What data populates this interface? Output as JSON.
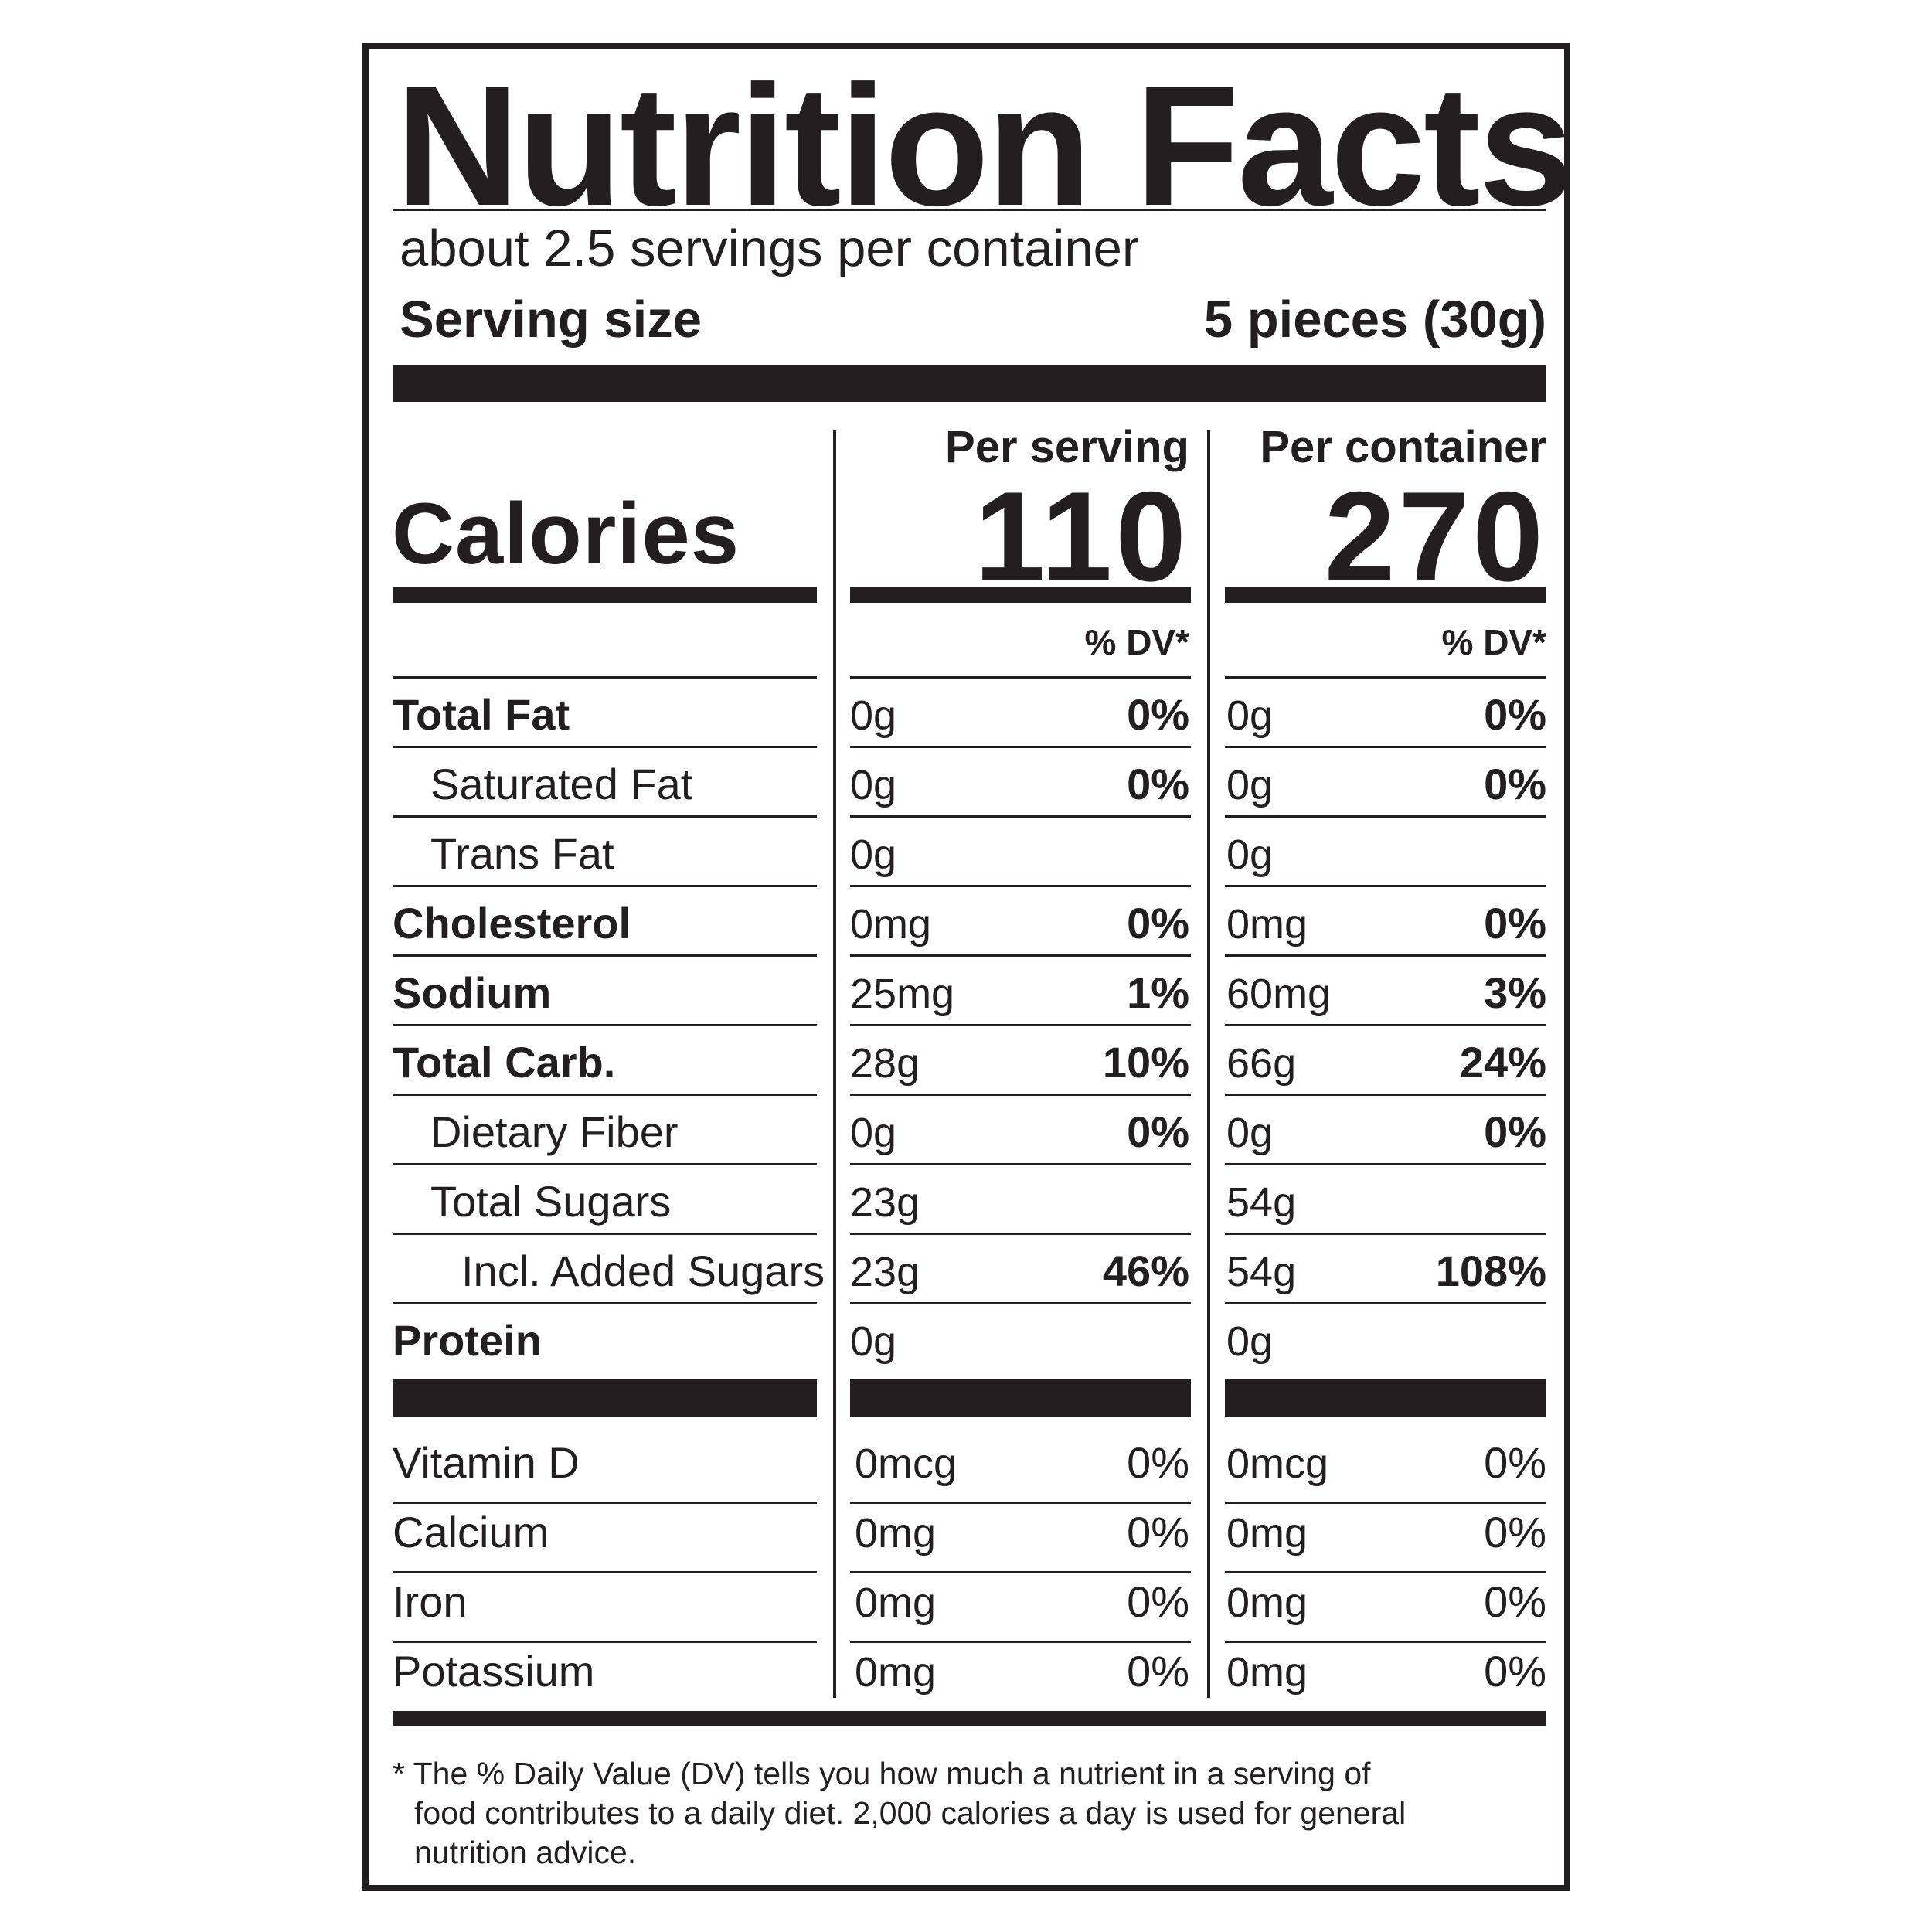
{
  "title": "Nutrition Facts",
  "servings_per_container": "about 2.5 servings per container",
  "serving_size": {
    "label": "Serving size",
    "value": "5 pieces (30g)"
  },
  "columns": {
    "per_serving": {
      "heading": "Per serving",
      "calories": "110",
      "dv_heading": "% DV*"
    },
    "per_container": {
      "heading": "Per container",
      "calories": "270",
      "dv_heading": "% DV*"
    }
  },
  "calories_label": "Calories",
  "nutrients": [
    {
      "label": "Total Fat",
      "bold": true,
      "indent": 0,
      "serving_amount": "0g",
      "serving_dv": "0%",
      "container_amount": "0g",
      "container_dv": "0%"
    },
    {
      "label": "Saturated Fat",
      "bold": false,
      "indent": 1,
      "serving_amount": "0g",
      "serving_dv": "0%",
      "container_amount": "0g",
      "container_dv": "0%"
    },
    {
      "label": "Trans Fat",
      "bold": false,
      "indent": 1,
      "serving_amount": "0g",
      "serving_dv": "",
      "container_amount": "0g",
      "container_dv": ""
    },
    {
      "label": "Cholesterol",
      "bold": true,
      "indent": 0,
      "serving_amount": "0mg",
      "serving_dv": "0%",
      "container_amount": "0mg",
      "container_dv": "0%"
    },
    {
      "label": "Sodium",
      "bold": true,
      "indent": 0,
      "serving_amount": "25mg",
      "serving_dv": "1%",
      "container_amount": "60mg",
      "container_dv": "3%"
    },
    {
      "label": "Total Carb.",
      "bold": true,
      "indent": 0,
      "serving_amount": "28g",
      "serving_dv": "10%",
      "container_amount": "66g",
      "container_dv": "24%"
    },
    {
      "label": "Dietary Fiber",
      "bold": false,
      "indent": 1,
      "serving_amount": "0g",
      "serving_dv": "0%",
      "container_amount": "0g",
      "container_dv": "0%"
    },
    {
      "label": "Total Sugars",
      "bold": false,
      "indent": 1,
      "serving_amount": "23g",
      "serving_dv": "",
      "container_amount": "54g",
      "container_dv": ""
    },
    {
      "label": "Incl. Added Sugars",
      "bold": false,
      "indent": 2,
      "serving_amount": "23g",
      "serving_dv": "46%",
      "container_amount": "54g",
      "container_dv": "108%"
    },
    {
      "label": "Protein",
      "bold": true,
      "indent": 0,
      "serving_amount": "0g",
      "serving_dv": "",
      "container_amount": "0g",
      "container_dv": ""
    }
  ],
  "vitamins": [
    {
      "label": "Vitamin D",
      "serving_amount": "0mcg",
      "serving_dv": "0%",
      "container_amount": "0mcg",
      "container_dv": "0%"
    },
    {
      "label": "Calcium",
      "serving_amount": "0mg",
      "serving_dv": "0%",
      "container_amount": "0mg",
      "container_dv": "0%"
    },
    {
      "label": "Iron",
      "serving_amount": "0mg",
      "serving_dv": "0%",
      "container_amount": "0mg",
      "container_dv": "0%"
    },
    {
      "label": "Potassium",
      "serving_amount": "0mg",
      "serving_dv": "0%",
      "container_amount": "0mg",
      "container_dv": "0%"
    }
  ],
  "footnote": {
    "line1": "* The % Daily Value (DV) tells you how much a nutrient in a serving of",
    "line2": "food contributes to a daily diet. 2,000 calories a day is used for general",
    "line3": "nutrition advice."
  }
}
